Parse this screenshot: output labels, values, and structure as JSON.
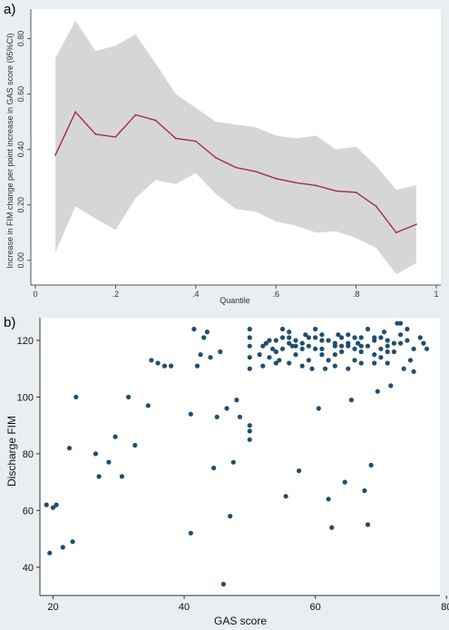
{
  "chart_data": [
    {
      "type": "line",
      "panel_label": "a)",
      "xlabel": "Quantile",
      "ylabel": "Increase in FIM change per point increase in GAS score (95%CI)",
      "xlim": [
        0,
        1
      ],
      "ylim": [
        -0.05,
        0.9
      ],
      "xticks": [
        0,
        0.2,
        0.4,
        0.6,
        0.8,
        1
      ],
      "xtick_labels": [
        "0",
        ".2",
        ".4",
        ".6",
        ".8",
        "1"
      ],
      "yticks": [
        0,
        0.2,
        0.4,
        0.6,
        0.8
      ],
      "ytick_labels": [
        "0.00",
        "0.20",
        "0.40",
        "0.60",
        "0.80"
      ],
      "grid": false,
      "colors": {
        "line": "#a03040",
        "band": "#d6d6d6",
        "panel_bg": "#e9eef2"
      },
      "x": [
        0.05,
        0.1,
        0.15,
        0.2,
        0.25,
        0.3,
        0.35,
        0.4,
        0.45,
        0.5,
        0.55,
        0.6,
        0.65,
        0.7,
        0.75,
        0.8,
        0.85,
        0.9,
        0.95
      ],
      "series": [
        {
          "values": [
            0.38,
            0.535,
            0.455,
            0.445,
            0.525,
            0.505,
            0.44,
            0.43,
            0.37,
            0.335,
            0.32,
            0.295,
            0.28,
            0.27,
            0.25,
            0.245,
            0.195,
            0.1,
            0.13
          ]
        }
      ],
      "ci_lower": [
        0.03,
        0.195,
        0.15,
        0.11,
        0.225,
        0.29,
        0.275,
        0.315,
        0.24,
        0.185,
        0.175,
        0.14,
        0.125,
        0.1,
        0.105,
        0.08,
        0.045,
        -0.05,
        -0.01
      ],
      "ci_upper": [
        0.73,
        0.865,
        0.755,
        0.775,
        0.815,
        0.71,
        0.6,
        0.55,
        0.5,
        0.49,
        0.48,
        0.45,
        0.44,
        0.45,
        0.4,
        0.41,
        0.34,
        0.255,
        0.27
      ]
    },
    {
      "type": "scatter",
      "panel_label": "b)",
      "xlabel": "GAS score",
      "ylabel": "Discharge FIM",
      "xlim": [
        18,
        79
      ],
      "ylim": [
        30,
        128
      ],
      "xticks": [
        20,
        40,
        60,
        80
      ],
      "yticks": [
        40,
        60,
        80,
        100,
        120
      ],
      "grid": false,
      "colors": {
        "marker": "#1f4e6e",
        "panel_bg": "#e9eef2"
      },
      "points": [
        [
          19,
          62
        ],
        [
          19.5,
          45
        ],
        [
          20,
          61
        ],
        [
          20.5,
          62
        ],
        [
          21.5,
          47
        ],
        [
          22.5,
          82
        ],
        [
          23,
          49
        ],
        [
          23.5,
          100
        ],
        [
          26.5,
          80
        ],
        [
          27,
          72
        ],
        [
          28.5,
          77
        ],
        [
          29.5,
          86
        ],
        [
          30.5,
          72
        ],
        [
          31.5,
          100
        ],
        [
          32.5,
          83
        ],
        [
          34.5,
          97
        ],
        [
          35,
          113
        ],
        [
          36,
          112
        ],
        [
          37,
          111
        ],
        [
          38,
          111
        ],
        [
          41,
          94
        ],
        [
          41.5,
          124
        ],
        [
          42,
          111
        ],
        [
          42.5,
          115
        ],
        [
          43,
          121
        ],
        [
          43.5,
          123
        ],
        [
          44,
          114
        ],
        [
          44.5,
          75
        ],
        [
          45,
          93
        ],
        [
          45.5,
          116
        ],
        [
          46,
          34
        ],
        [
          46.5,
          96
        ],
        [
          47,
          58
        ],
        [
          47.5,
          77
        ],
        [
          48,
          99
        ],
        [
          48.5,
          93
        ],
        [
          41,
          52
        ],
        [
          50,
          88
        ],
        [
          50,
          85
        ],
        [
          50,
          90
        ],
        [
          50,
          110
        ],
        [
          50,
          114
        ],
        [
          50,
          118
        ],
        [
          50,
          121
        ],
        [
          50,
          124
        ],
        [
          51.5,
          115
        ],
        [
          52,
          111
        ],
        [
          52.5,
          119
        ],
        [
          53,
          120
        ],
        [
          53.5,
          117
        ],
        [
          54,
          116
        ],
        [
          54.5,
          113
        ],
        [
          55,
          121
        ],
        [
          55.5,
          65
        ],
        [
          56,
          119
        ],
        [
          56.5,
          118
        ],
        [
          57,
          120
        ],
        [
          57.5,
          74
        ],
        [
          58,
          117
        ],
        [
          58.5,
          122
        ],
        [
          59,
          113
        ],
        [
          59.5,
          110
        ],
        [
          60,
          121
        ],
        [
          60.5,
          96
        ],
        [
          61,
          120
        ],
        [
          61.5,
          110
        ],
        [
          62,
          64
        ],
        [
          62.5,
          54
        ],
        [
          63,
          118
        ],
        [
          63.5,
          122
        ],
        [
          64,
          116
        ],
        [
          64.5,
          70
        ],
        [
          65,
          110
        ],
        [
          65.5,
          99
        ],
        [
          66,
          121
        ],
        [
          66.5,
          119
        ],
        [
          67,
          118
        ],
        [
          67.5,
          67
        ],
        [
          68,
          55
        ],
        [
          68.5,
          76
        ],
        [
          69,
          120
        ],
        [
          69.5,
          102
        ],
        [
          70,
          117
        ],
        [
          70.5,
          123
        ],
        [
          71,
          112
        ],
        [
          71.5,
          104
        ],
        [
          72,
          116
        ],
        [
          72.5,
          126
        ],
        [
          73,
          119
        ],
        [
          73.5,
          110
        ],
        [
          74,
          124
        ],
        [
          74.5,
          113
        ],
        [
          75,
          109
        ],
        [
          76,
          121
        ],
        [
          76.5,
          119
        ],
        [
          77,
          117
        ],
        [
          55,
          124
        ],
        [
          57,
          115
        ],
        [
          60,
          117
        ],
        [
          62,
          120
        ],
        [
          64,
          121
        ],
        [
          66,
          113
        ],
        [
          68,
          118
        ],
        [
          70,
          121
        ],
        [
          72,
          119
        ],
        [
          74,
          120
        ],
        [
          56,
          112
        ],
        [
          58,
          111
        ],
        [
          61,
          115
        ],
        [
          63,
          111
        ],
        [
          65,
          118
        ],
        [
          67,
          112
        ],
        [
          69,
          115
        ],
        [
          71,
          118
        ],
        [
          73,
          122
        ],
        [
          75,
          117
        ],
        [
          54,
          120
        ],
        [
          56,
          121
        ],
        [
          59,
          118
        ],
        [
          61,
          122
        ],
        [
          63,
          119
        ],
        [
          65,
          122
        ],
        [
          67,
          121
        ],
        [
          69,
          112
        ],
        [
          71,
          120
        ],
        [
          73,
          126
        ],
        [
          53,
          114
        ],
        [
          55,
          117
        ],
        [
          57,
          118
        ],
        [
          59,
          121
        ],
        [
          61,
          117
        ],
        [
          63,
          115
        ],
        [
          65,
          119
        ],
        [
          67,
          116
        ],
        [
          69,
          121
        ],
        [
          71,
          116
        ],
        [
          52,
          118
        ],
        [
          54,
          112
        ],
        [
          56,
          123
        ],
        [
          58,
          119
        ],
        [
          60,
          124
        ],
        [
          62,
          113
        ],
        [
          64,
          118
        ],
        [
          66,
          117
        ],
        [
          68,
          124
        ],
        [
          70,
          114
        ]
      ]
    }
  ]
}
